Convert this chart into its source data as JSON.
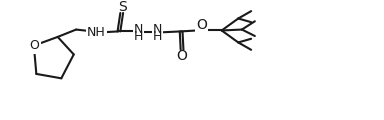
{
  "bg_color": "#ffffff",
  "line_color": "#1a1a1a",
  "line_width": 1.5,
  "font_size": 9.0,
  "fig_width": 3.84,
  "fig_height": 1.2,
  "dpi": 100,
  "xlim": [
    0,
    384
  ],
  "ylim": [
    0,
    120
  ]
}
